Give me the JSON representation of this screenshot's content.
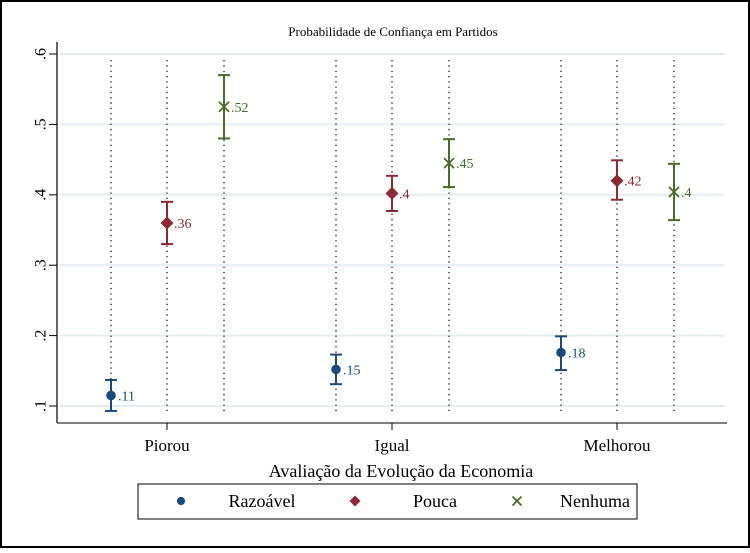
{
  "chart_data": {
    "type": "scatter",
    "subtype": "point-estimates-with-confidence-intervals",
    "title": "Probabilidade de Confiança em Partidos",
    "xlabel": "Avaliação da Evolução da Economia",
    "ylabel": "",
    "categories": [
      "Piorou",
      "Igual",
      "Melhorou"
    ],
    "ylim": [
      0.1,
      0.6
    ],
    "yticks": [
      0.1,
      0.2,
      0.3,
      0.4,
      0.5,
      0.6
    ],
    "ytick_labels": [
      ".1",
      ".2",
      ".3",
      ".4",
      ".5",
      ".6"
    ],
    "grid": true,
    "legend_position": "bottom",
    "series": [
      {
        "name": "Razoável",
        "marker": "circle",
        "color": "#1a4a7a",
        "values": [
          0.115,
          0.152,
          0.176
        ],
        "labels": [
          ".11",
          ".15",
          ".18"
        ],
        "ci_low": [
          0.093,
          0.131,
          0.151
        ],
        "ci_high": [
          0.137,
          0.173,
          0.199
        ]
      },
      {
        "name": "Pouca",
        "marker": "diamond",
        "color": "#8b2a35",
        "values": [
          0.36,
          0.402,
          0.42
        ],
        "labels": [
          ".36",
          ".4",
          ".42"
        ],
        "ci_low": [
          0.33,
          0.377,
          0.393
        ],
        "ci_high": [
          0.39,
          0.427,
          0.449
        ]
      },
      {
        "name": "Nenhuma",
        "marker": "x",
        "color": "#4a6b2a",
        "values": [
          0.525,
          0.445,
          0.404
        ],
        "labels": [
          ".52",
          ".45",
          ".4"
        ],
        "ci_low": [
          0.48,
          0.411,
          0.364
        ],
        "ci_high": [
          0.57,
          0.479,
          0.444
        ]
      }
    ]
  }
}
